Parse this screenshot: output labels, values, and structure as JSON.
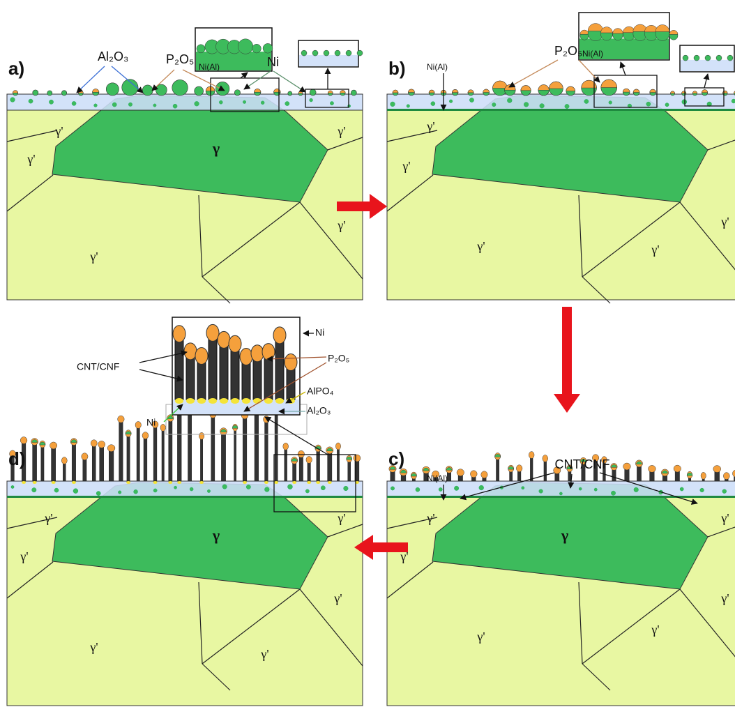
{
  "panels": [
    {
      "label": "a)",
      "gamma": "γ",
      "grains": [
        "γ'",
        "γ'",
        "γ'",
        "γ'",
        "γ'"
      ],
      "callouts": [
        "Al₂O₃",
        "P₂O₅",
        "Ni"
      ],
      "inset_label": "Ni(Al)"
    },
    {
      "label": "b)",
      "grains": [
        "γ'",
        "γ'",
        "γ'",
        "γ'",
        "γ'"
      ],
      "callouts": [
        "Ni(Al)",
        "P₂O₅"
      ],
      "inset_label": "Ni(Al)"
    },
    {
      "label": "c)",
      "gamma": "γ",
      "grains": [
        "γ'",
        "γ'",
        "γ'",
        "γ'",
        "γ'",
        "γ'"
      ],
      "callouts": [
        "CNT/CNF",
        "Ni(Al)"
      ]
    },
    {
      "label": "d)",
      "gamma": "γ",
      "grains": [
        "γ'",
        "γ'",
        "γ'",
        "γ'",
        "γ'",
        "γ'"
      ],
      "inset_labels": [
        "CNT/CNF",
        "Ni",
        "P₂O₅",
        "Ni",
        "AlPO₄",
        "Al₂O₃"
      ]
    }
  ]
}
